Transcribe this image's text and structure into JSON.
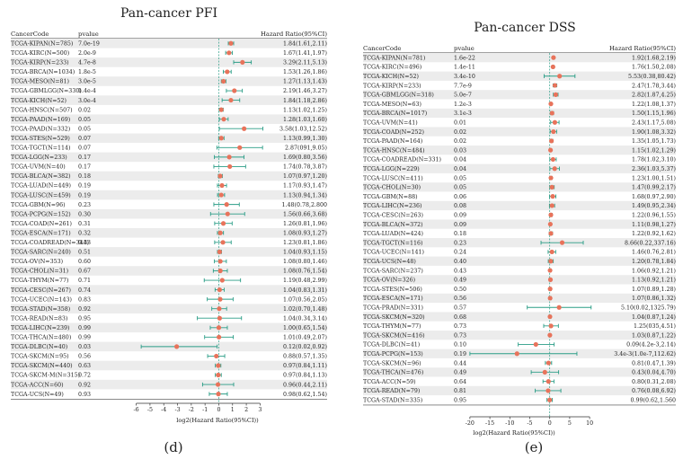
{
  "figure": {
    "panels": [
      {
        "letter": "(d)"
      },
      {
        "letter": "(e)"
      }
    ]
  },
  "chart_data": [
    {
      "type": "forest",
      "title": "Pan-cancer PFI",
      "columns": [
        "CancerCode",
        "pvalue",
        "Hazard Ratio(95%CI)"
      ],
      "xlabel": "log2(Hazard Ratio(95%CI))",
      "xticks": [
        -6,
        -5,
        -4,
        -3,
        -2,
        -1,
        0,
        1,
        2,
        3
      ],
      "xlim": [
        -6.3,
        3.3
      ],
      "reference_line": 0,
      "colors": {
        "point": "#e8735b",
        "ci": "#2a9d86",
        "row_alt": "#ececec",
        "ref": "#2a9d86"
      },
      "rows": [
        {
          "code": "TCGA-KIPAN(N=785)",
          "p": "7.0e-19",
          "hr": "1.84(1.61,2.11)",
          "est": 0.88,
          "lo": 0.69,
          "hi": 1.08
        },
        {
          "code": "TCGA-KIRC(N=500)",
          "p": "2.0e-9",
          "hr": "1.67(1.41,1.97)",
          "est": 0.74,
          "lo": 0.5,
          "hi": 0.98
        },
        {
          "code": "TCGA-KIRP(N=233)",
          "p": "4.7e-8",
          "hr": "3.29(2.11,5.13)",
          "est": 1.72,
          "lo": 1.08,
          "hi": 2.36
        },
        {
          "code": "TCGA-BRCA(N=1034)",
          "p": "1.8e-5",
          "hr": "1.53(1.26,1.86)",
          "est": 0.61,
          "lo": 0.33,
          "hi": 0.9
        },
        {
          "code": "TCGA-MESO(N=81)",
          "p": "3.0e-5",
          "hr": "1.27(1.13,1.43)",
          "est": 0.34,
          "lo": 0.18,
          "hi": 0.52
        },
        {
          "code": "TCGA-GBMLGG(N=330)",
          "p": "1.4e-4",
          "hr": "2.19(1.46,3.27)",
          "est": 1.13,
          "lo": 0.55,
          "hi": 1.71
        },
        {
          "code": "TCGA-KICH(N=52)",
          "p": "3.0e-4",
          "hr": "1.84(1.18,2.86)",
          "est": 0.88,
          "lo": 0.24,
          "hi": 1.52
        },
        {
          "code": "TCGA-HNSC(N=507)",
          "p": "0.02",
          "hr": "1.13(1.02,1.25)",
          "est": 0.18,
          "lo": 0.03,
          "hi": 0.32
        },
        {
          "code": "TCGA-PAAD(N=169)",
          "p": "0.05",
          "hr": "1.28(1.03,1.60)",
          "est": 0.36,
          "lo": 0.04,
          "hi": 0.68
        },
        {
          "code": "TCGA-PAAD(N=332)",
          "p": "0.05",
          "hr": "3.58(1.03,12.52)",
          "est": 1.84,
          "lo": 0.04,
          "hi": 3.2
        },
        {
          "code": "TCGA-STES(N=529)",
          "p": "0.07",
          "hr": "1.13(0.99,1.30)",
          "est": 0.18,
          "lo": -0.01,
          "hi": 0.38
        },
        {
          "code": "TCGA-TGCT(N=114)",
          "p": "0.07",
          "hr": "2.87(091,9.05)",
          "est": 1.52,
          "lo": -0.14,
          "hi": 3.18
        },
        {
          "code": "TCGA-LGG(N=233)",
          "p": "0.17",
          "hr": "1.69(0.80,3.56)",
          "est": 0.76,
          "lo": -0.32,
          "hi": 1.83
        },
        {
          "code": "TCGA-UVM(N=40)",
          "p": "0.17",
          "hr": "1.74(0.78,3.87)",
          "est": 0.8,
          "lo": -0.36,
          "hi": 1.95
        },
        {
          "code": "TCGA-BLCA(N=382)",
          "p": "0.18",
          "hr": "1.07(0.97,1.20)",
          "est": 0.1,
          "lo": -0.04,
          "hi": 0.26
        },
        {
          "code": "TCGA-LUAD(N=449)",
          "p": "0.19",
          "hr": "1.17(0.93,1.47)",
          "est": 0.23,
          "lo": -0.1,
          "hi": 0.56
        },
        {
          "code": "TCGA-LUSC(N=459)",
          "p": "0.19",
          "hr": "1.13(0.94,1.34)",
          "est": 0.18,
          "lo": -0.09,
          "hi": 0.42
        },
        {
          "code": "TCGA-GBM(N=96)",
          "p": "0.23",
          "hr": "1.48(0.78,2.800",
          "est": 0.57,
          "lo": -0.36,
          "hi": 1.49
        },
        {
          "code": "TCGA-PCPG(N=152)",
          "p": "0.30",
          "hr": "1.56(0.66,3.68)",
          "est": 0.64,
          "lo": -0.6,
          "hi": 1.88
        },
        {
          "code": "TCGA-COAD(N=261)",
          "p": "0.31",
          "hr": "1.26(0.81,1.96)",
          "est": 0.33,
          "lo": -0.3,
          "hi": 0.97
        },
        {
          "code": "TCGA-ESCA(N=171)",
          "p": "0.32",
          "hr": "1.08(0.93,1.27)",
          "est": 0.11,
          "lo": -0.1,
          "hi": 0.34
        },
        {
          "code": "TCGA-COADREAD(N=344)",
          "p": "0.33",
          "hr": "1.23(0.81,1.86)",
          "est": 0.3,
          "lo": -0.3,
          "hi": 0.9
        },
        {
          "code": "TCGA-SARC(N=240)",
          "p": "0.51",
          "hr": "1.04(0.93,1.15)",
          "est": 0.06,
          "lo": -0.1,
          "hi": 0.2
        },
        {
          "code": "TCGA-OV(N=353)",
          "p": "0.60",
          "hr": "1.08(0.80,1.46)",
          "est": 0.11,
          "lo": -0.32,
          "hi": 0.55
        },
        {
          "code": "TCGA-CHOL(N=31)",
          "p": "0.67",
          "hr": "1.08(0.76,1.54)",
          "est": 0.11,
          "lo": -0.4,
          "hi": 0.62
        },
        {
          "code": "TCGA-THYM(N=77)",
          "p": "0.71",
          "hr": "1.19(0.48,2.99)",
          "est": 0.25,
          "lo": -1.06,
          "hi": 1.58
        },
        {
          "code": "TCGA-CESC(N=267)",
          "p": "0.74",
          "hr": "1.04(0.83,1.31)",
          "est": 0.06,
          "lo": -0.27,
          "hi": 0.39
        },
        {
          "code": "TCGA-UCEC(N=143)",
          "p": "0.83",
          "hr": "1.07(0.56,2.05)",
          "est": 0.1,
          "lo": -0.84,
          "hi": 1.04
        },
        {
          "code": "TCGA-STAD(N=358)",
          "p": "0.92",
          "hr": "1.02(0.70,1.48)",
          "est": 0.03,
          "lo": -0.51,
          "hi": 0.57
        },
        {
          "code": "TCGA-READ(N=83)",
          "p": "0.95",
          "hr": "1.04(0.34,3.14)",
          "est": 0.06,
          "lo": -1.56,
          "hi": 1.65
        },
        {
          "code": "TCGA-LIHC(N=239)",
          "p": "0.99",
          "hr": "1.00(0.65,1.54)",
          "est": 0.0,
          "lo": -0.62,
          "hi": 0.62
        },
        {
          "code": "TCGA-THCA(N=480)",
          "p": "0.99",
          "hr": "1.01(0.49,2.07)",
          "est": 0.01,
          "lo": -1.03,
          "hi": 1.05
        },
        {
          "code": "TCGA-DLBC(N=40)",
          "p": "0.03",
          "hr": "0.12(0.02,0.92)",
          "est": -3.06,
          "lo": -5.64,
          "hi": -0.12
        },
        {
          "code": "TCGA-SKCM(N=95)",
          "p": "0.56",
          "hr": "0.88(0.57,1.35)",
          "est": -0.18,
          "lo": -0.81,
          "hi": 0.43
        },
        {
          "code": "TCGA-SKCM(N=440)",
          "p": "0.63",
          "hr": "0.97(0.84,1.11)",
          "est": -0.04,
          "lo": -0.25,
          "hi": 0.15
        },
        {
          "code": "TCGA-SKCM-M(N=315)",
          "p": "0.72",
          "hr": "0.97(0.84,1.13)",
          "est": -0.04,
          "lo": -0.25,
          "hi": 0.18
        },
        {
          "code": "TCGA-ACC(N=60)",
          "p": "0.92",
          "hr": "0.96(0.44,2.11)",
          "est": -0.06,
          "lo": -1.18,
          "hi": 1.08
        },
        {
          "code": "TCGA-UCS(N=49)",
          "p": "0.93",
          "hr": "0.98(0.62,1.54)",
          "est": -0.03,
          "lo": -0.69,
          "hi": 0.62
        }
      ]
    },
    {
      "type": "forest",
      "title": "Pan-cancer DSS",
      "columns": [
        "CancerCode",
        "pvalue",
        "Hazard Ratio(95%CI)"
      ],
      "xlabel": "log2(Hazard Ratio(95%CI))",
      "xticks": [
        -20,
        -15,
        -10,
        -5,
        0,
        5,
        10
      ],
      "xlim": [
        -22,
        12
      ],
      "reference_line": 0,
      "colors": {
        "point": "#e8735b",
        "ci": "#2a9d86",
        "row_alt": "#ececec",
        "ref": "#2a9d86"
      },
      "rows": [
        {
          "code": "TCGA-KIPAN(N=781)",
          "p": "1.6e-22",
          "hr": "1.92(1.68,2.19)",
          "est": 0.94,
          "lo": 0.75,
          "hi": 1.13
        },
        {
          "code": "TCGA-KIRC(N=496)",
          "p": "1.4e-11",
          "hr": "1.76(1.50,2.08)",
          "est": 0.82,
          "lo": 0.58,
          "hi": 1.06
        },
        {
          "code": "TCGA-KICH(N=52)",
          "p": "3.4e-10",
          "hr": "5.53(0.38,80.42)",
          "est": 2.47,
          "lo": -1.4,
          "hi": 6.33
        },
        {
          "code": "TCGA-KIRP(N=233)",
          "p": "7.7e-9",
          "hr": "2.47(1.78,3.44)",
          "est": 1.3,
          "lo": 0.83,
          "hi": 1.78
        },
        {
          "code": "TCGA-GBMLGG(N=318)",
          "p": "5.0e-7",
          "hr": "2.82(1.87,4.25)",
          "est": 1.5,
          "lo": 0.9,
          "hi": 2.09
        },
        {
          "code": "TCGA-MESO(N=63)",
          "p": "1.2e-3",
          "hr": "1.22(1.08,1.37)",
          "est": 0.29,
          "lo": 0.11,
          "hi": 0.45
        },
        {
          "code": "TCGA-BRCA(N=1017)",
          "p": "3.1e-3",
          "hr": "1.50(1.15,1.96)",
          "est": 0.58,
          "lo": 0.2,
          "hi": 0.97
        },
        {
          "code": "TCGA-UVM(N=41)",
          "p": "0.01",
          "hr": "2.43(1.17,5.08)",
          "est": 1.28,
          "lo": 0.23,
          "hi": 2.34
        },
        {
          "code": "TCGA-COAD(N=252)",
          "p": "0.02",
          "hr": "1.90(1.08,3.32)",
          "est": 0.93,
          "lo": 0.11,
          "hi": 1.73
        },
        {
          "code": "TCGA-PAAD(N=164)",
          "p": "0.02",
          "hr": "1.35(1.05,1.73)",
          "est": 0.43,
          "lo": 0.07,
          "hi": 0.79
        },
        {
          "code": "TCGA-HNSC(N=484)",
          "p": "0.03",
          "hr": "1.15(1.02,1.29)",
          "est": 0.2,
          "lo": 0.03,
          "hi": 0.37
        },
        {
          "code": "TCGA-COADREAD(N=331)",
          "p": "0.04",
          "hr": "1.78(1.02,3.10)",
          "est": 0.83,
          "lo": 0.03,
          "hi": 1.63
        },
        {
          "code": "TCGA-LGG(N=229)",
          "p": "0.04",
          "hr": "2.36(1.03,5.37)",
          "est": 1.24,
          "lo": 0.04,
          "hi": 2.42
        },
        {
          "code": "TCGA-LUSC(N=411)",
          "p": "0.05",
          "hr": "1.23(1.00,1.51)",
          "est": 0.3,
          "lo": 0.0,
          "hi": 0.59
        },
        {
          "code": "TCGA-CHOL(N=30)",
          "p": "0.05",
          "hr": "1.47(0.99,2.17)",
          "est": 0.56,
          "lo": -0.01,
          "hi": 1.12
        },
        {
          "code": "TCGA-GBM(N=88)",
          "p": "0.06",
          "hr": "1.68(0.97,2.90)",
          "est": 0.75,
          "lo": -0.04,
          "hi": 1.54
        },
        {
          "code": "TCGA-LIHC(N=236)",
          "p": "0.08",
          "hr": "1.49(0.95,2.34)",
          "est": 0.58,
          "lo": -0.07,
          "hi": 1.23
        },
        {
          "code": "TCGA-CESC(N=263)",
          "p": "0.09",
          "hr": "1.22(0.96,1.55)",
          "est": 0.29,
          "lo": -0.06,
          "hi": 0.63
        },
        {
          "code": "TCGA-BLCA(N=372)",
          "p": "0.09",
          "hr": "1.11(0.98,1.27)",
          "est": 0.15,
          "lo": -0.03,
          "hi": 0.34
        },
        {
          "code": "TCGA-LUAD(N=424)",
          "p": "0.18",
          "hr": "1.22(0.92,1.62)",
          "est": 0.29,
          "lo": -0.12,
          "hi": 0.7
        },
        {
          "code": "TCGA-TGCT(N=116)",
          "p": "0.23",
          "hr": "8.66(0.22,337.16)",
          "est": 3.11,
          "lo": -2.18,
          "hi": 8.4
        },
        {
          "code": "TCGA-UCEC(N=141)",
          "p": "0.24",
          "hr": "1.46(0.76,2.81)",
          "est": 0.55,
          "lo": -0.4,
          "hi": 1.49
        },
        {
          "code": "TCGA-UCS(N=48)",
          "p": "0.40",
          "hr": "1.20(0.78,1.84)",
          "est": 0.26,
          "lo": -0.36,
          "hi": 0.88
        },
        {
          "code": "TCGA-SARC(N=237)",
          "p": "0.43",
          "hr": "1.06(0.92,1.21)",
          "est": 0.08,
          "lo": -0.12,
          "hi": 0.28
        },
        {
          "code": "TCGA-OV(N=326)",
          "p": "0.49",
          "hr": "1.13(0.92,1.21)",
          "est": 0.18,
          "lo": -0.12,
          "hi": 0.28
        },
        {
          "code": "TCGA-STES(N=506)",
          "p": "0.50",
          "hr": "1.07(0.89,1.28)",
          "est": 0.1,
          "lo": -0.17,
          "hi": 0.36
        },
        {
          "code": "TCGA-ESCA(N=171)",
          "p": "0.56",
          "hr": "1.07(0.86,1.32)",
          "est": 0.1,
          "lo": -0.22,
          "hi": 0.4
        },
        {
          "code": "TCGA-PRAD(N=331)",
          "p": "0.57",
          "hr": "5.10(0.02,1325.79)",
          "est": 2.35,
          "lo": -5.64,
          "hi": 10.37
        },
        {
          "code": "TCGA-SKCM(N=320)",
          "p": "0.68",
          "hr": "1.04(0.87,1.24)",
          "est": 0.06,
          "lo": -0.2,
          "hi": 0.31
        },
        {
          "code": "TCGA-THYM(N=77)",
          "p": "0.73",
          "hr": "1.25(035,4.51)",
          "est": 0.32,
          "lo": -1.51,
          "hi": 2.17
        },
        {
          "code": "TCGA-SKCM(N=416)",
          "p": "0.73",
          "hr": "1.03(0.87,1.22)",
          "est": 0.04,
          "lo": -0.2,
          "hi": 0.29
        },
        {
          "code": "TCGA-DLBC(N=41)",
          "p": "0.10",
          "hr": "0.09(4.2e-3,2.14)",
          "est": -3.47,
          "lo": -7.9,
          "hi": 1.1
        },
        {
          "code": "TCGA-PCPG(N=153)",
          "p": "0.19",
          "hr": "3.4e-3(1.0e-7,112.62)",
          "est": -8.2,
          "lo": -20.0,
          "hi": 6.81
        },
        {
          "code": "TCGA-SKCM(N=96)",
          "p": "0.44",
          "hr": "0.81(0.47,1.39)",
          "est": -0.3,
          "lo": -1.09,
          "hi": 0.48
        },
        {
          "code": "TCGA-THCA(N=476)",
          "p": "0.49",
          "hr": "0.43(0.04,4.70)",
          "est": -1.22,
          "lo": -4.64,
          "hi": 2.23
        },
        {
          "code": "TCGA-ACC(N=59)",
          "p": "0.64",
          "hr": "0.80(0.31,2.08)",
          "est": -0.32,
          "lo": -1.69,
          "hi": 1.06
        },
        {
          "code": "TCGA-READ(N=79)",
          "p": "0.81",
          "hr": "0.76(0.08,6.92)",
          "est": -0.4,
          "lo": -3.64,
          "hi": 2.79
        },
        {
          "code": "TCGA-STAD(N=335)",
          "p": "0.95",
          "hr": "0.99(0.62,1.560",
          "est": -0.01,
          "lo": -0.69,
          "hi": 0.64
        }
      ]
    }
  ]
}
